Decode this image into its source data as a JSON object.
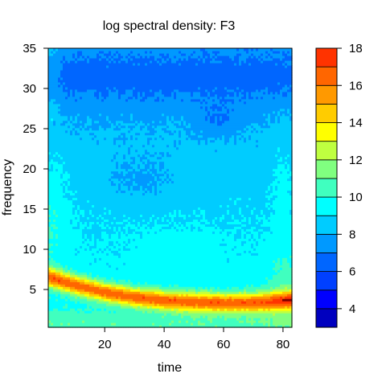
{
  "chart_data": {
    "type": "heatmap",
    "title": "log spectral density: F3",
    "xlabel": "time",
    "ylabel": "frequency",
    "xlim": [
      1,
      83
    ],
    "ylim": [
      0.3,
      35
    ],
    "x_ticks": [
      20,
      40,
      60,
      80
    ],
    "y_ticks": [
      5,
      10,
      15,
      20,
      25,
      30,
      35
    ],
    "colorbar": {
      "levels": [
        3,
        4,
        5,
        6,
        7,
        8,
        9,
        10,
        11,
        12,
        13,
        14,
        15,
        16,
        17,
        18
      ],
      "tick_labels": [
        4,
        6,
        8,
        10,
        12,
        14,
        16,
        18
      ],
      "colors": [
        "#00007f",
        "#0000bf",
        "#0000ff",
        "#0040ff",
        "#0066ff",
        "#0099ff",
        "#00ccff",
        "#00ffff",
        "#40ffbf",
        "#80ff80",
        "#bfff40",
        "#ffff00",
        "#ffcc00",
        "#ff9900",
        "#ff6600",
        "#ff3300",
        "#ff0000",
        "#bf0000",
        "#7f0000"
      ]
    },
    "peak_ridge": {
      "time": [
        1,
        10,
        20,
        30,
        40,
        50,
        60,
        70,
        83
      ],
      "frequency": [
        6.6,
        5.6,
        4.7,
        4.1,
        3.7,
        3.5,
        3.4,
        3.4,
        3.7
      ],
      "max_log_density": 16.5
    }
  }
}
